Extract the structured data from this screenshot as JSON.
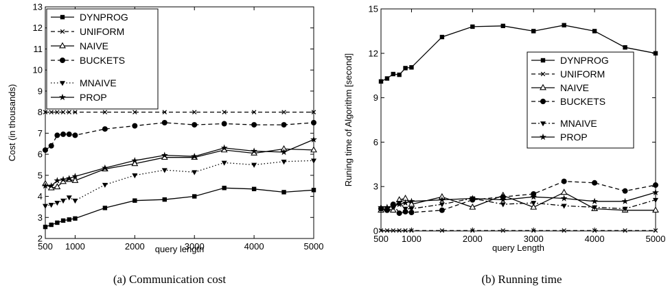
{
  "chart_data": [
    {
      "type": "line",
      "caption": "(a) Communication cost",
      "xlabel": "query length",
      "ylabel": "Cost (in thousands)",
      "xlim": [
        500,
        5000
      ],
      "ylim": [
        2,
        13
      ],
      "xticks": [
        500,
        1000,
        2000,
        3000,
        4000,
        5000
      ],
      "yticks": [
        2,
        3,
        4,
        5,
        6,
        7,
        8,
        9,
        10,
        11,
        12,
        13
      ],
      "x": [
        500,
        600,
        700,
        800,
        900,
        1000,
        1500,
        2000,
        2500,
        3000,
        3500,
        4000,
        4500,
        5000
      ],
      "grid": false,
      "legend": "top-left",
      "series": [
        {
          "name": "DYNPROG",
          "marker": "square",
          "dash": "solid",
          "values": [
            2.55,
            2.65,
            2.75,
            2.85,
            2.9,
            2.95,
            3.45,
            3.8,
            3.85,
            4.0,
            4.4,
            4.35,
            4.2,
            4.3
          ]
        },
        {
          "name": "UNIFORM",
          "marker": "x",
          "dash": "dashed",
          "values": [
            8,
            8,
            8,
            8,
            8,
            8,
            8,
            8,
            8,
            8,
            8,
            8,
            8,
            8
          ]
        },
        {
          "name": "NAIVE",
          "marker": "triangle-up",
          "dash": "solid",
          "values": [
            4.6,
            4.4,
            4.45,
            4.7,
            4.8,
            4.75,
            5.3,
            5.55,
            5.85,
            5.85,
            6.2,
            6.05,
            6.25,
            6.2
          ]
        },
        {
          "name": "BUCKETS",
          "marker": "circle",
          "dash": "dashed",
          "values": [
            6.2,
            6.4,
            6.9,
            6.95,
            6.95,
            6.9,
            7.2,
            7.35,
            7.5,
            7.4,
            7.45,
            7.4,
            7.4,
            7.5
          ]
        },
        {
          "name": "MNAIVE",
          "marker": "triangle-down",
          "dash": "dotted",
          "values": [
            3.55,
            3.6,
            3.7,
            3.8,
            3.95,
            3.8,
            4.55,
            5.0,
            5.25,
            5.15,
            5.6,
            5.5,
            5.65,
            5.7
          ]
        },
        {
          "name": "PROP",
          "marker": "star",
          "dash": "solid",
          "values": [
            4.5,
            4.5,
            4.75,
            4.8,
            4.85,
            4.95,
            5.35,
            5.7,
            5.95,
            5.9,
            6.3,
            6.15,
            6.1,
            6.7
          ]
        }
      ]
    },
    {
      "type": "line",
      "caption": "(b) Running time",
      "xlabel": "query Length",
      "ylabel": "Runing time of Algorithm [second]",
      "xlim": [
        500,
        5000
      ],
      "ylim": [
        0,
        15
      ],
      "xticks": [
        500,
        1000,
        2000,
        3000,
        4000,
        5000
      ],
      "yticks": [
        0,
        3,
        6,
        9,
        12,
        15
      ],
      "x": [
        500,
        600,
        700,
        800,
        900,
        1000,
        1500,
        2000,
        2500,
        3000,
        3500,
        4000,
        4500,
        5000
      ],
      "grid": false,
      "legend": "right",
      "series": [
        {
          "name": "DYNPROG",
          "marker": "square",
          "dash": "solid",
          "values": [
            10.1,
            10.3,
            10.6,
            10.55,
            11.0,
            11.05,
            13.1,
            13.8,
            13.85,
            13.5,
            13.9,
            13.5,
            12.4,
            12.0
          ]
        },
        {
          "name": "UNIFORM",
          "marker": "x",
          "dash": "dashed",
          "values": [
            0.03,
            0.03,
            0.03,
            0.03,
            0.03,
            0.03,
            0.03,
            0.03,
            0.03,
            0.03,
            0.03,
            0.03,
            0.03,
            0.03
          ]
        },
        {
          "name": "NAIVE",
          "marker": "triangle-up",
          "dash": "solid",
          "values": [
            1.4,
            1.5,
            1.4,
            2.1,
            2.2,
            1.8,
            2.3,
            1.6,
            2.4,
            1.6,
            2.6,
            1.5,
            1.4,
            1.4
          ]
        },
        {
          "name": "BUCKETS",
          "marker": "circle",
          "dash": "dashed",
          "values": [
            1.5,
            1.4,
            1.8,
            1.2,
            1.3,
            1.25,
            1.4,
            2.1,
            2.3,
            2.5,
            3.35,
            3.25,
            2.7,
            3.1
          ]
        },
        {
          "name": "MNAIVE",
          "marker": "triangle-down",
          "dash": "dashdot",
          "values": [
            1.5,
            1.5,
            1.6,
            1.9,
            1.5,
            1.5,
            1.8,
            2.2,
            1.8,
            1.9,
            1.7,
            1.6,
            1.5,
            2.1
          ]
        },
        {
          "name": "PROP",
          "marker": "star",
          "dash": "solid",
          "values": [
            1.6,
            1.6,
            1.7,
            1.8,
            1.9,
            2.0,
            2.1,
            2.2,
            2.1,
            2.3,
            2.2,
            2.0,
            2.0,
            2.6
          ]
        }
      ]
    }
  ]
}
